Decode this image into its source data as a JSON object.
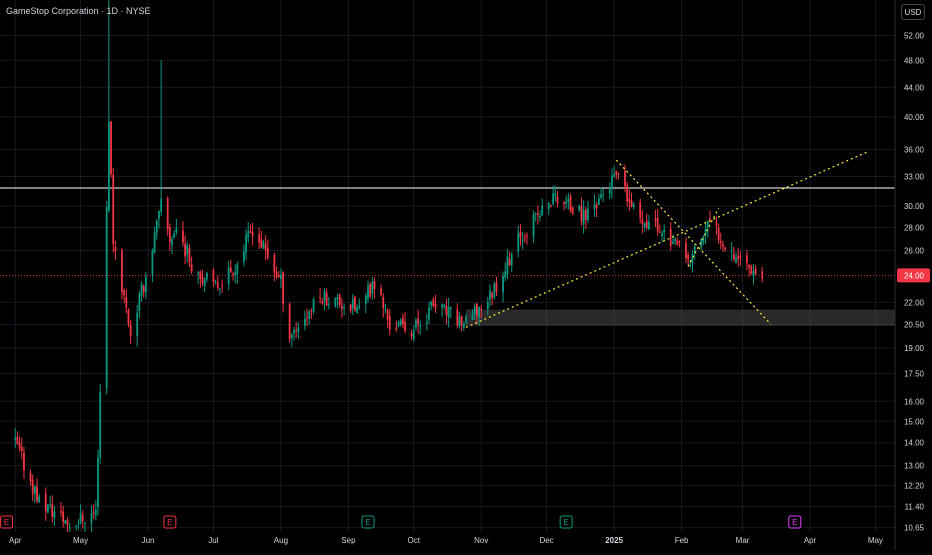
{
  "header": {
    "symbol_title": "GameStop Corporation · 1D · NYSE",
    "currency_button": "USD"
  },
  "price_scale": {
    "ticks": [
      "52.00",
      "48.00",
      "44.00",
      "40.00",
      "36.00",
      "33.00",
      "30.00",
      "28.00",
      "26.00",
      "22.00",
      "20.50",
      "19.00",
      "17.50",
      "16.00",
      "15.00",
      "14.00",
      "13.00",
      "12.20",
      "11.40",
      "10.65"
    ],
    "current_price_label": "24.00"
  },
  "time_axis": {
    "labels": [
      "Apr",
      "May",
      "Jun",
      "Jul",
      "Aug",
      "Sep",
      "Oct",
      "Nov",
      "Dec",
      "2025",
      "Feb",
      "Mar",
      "Apr",
      "May"
    ]
  },
  "events": [
    {
      "letter": "E",
      "type": "earnings",
      "color": "#f23645"
    },
    {
      "letter": "E",
      "type": "earnings",
      "color": "#f23645"
    },
    {
      "letter": "E",
      "type": "earnings",
      "color": "#089981"
    },
    {
      "letter": "E",
      "type": "earnings",
      "color": "#089981"
    },
    {
      "letter": "E",
      "type": "earnings-upcoming",
      "color": "#e040fb"
    }
  ],
  "colors": {
    "background": "#000000",
    "up": "#089981",
    "down": "#f23645",
    "trendline": "#ffeb3b",
    "horizontal_line": "#ffffff",
    "support_zone": "#4a4a4a",
    "current_price": "#f23645"
  },
  "chart_data": {
    "type": "candlestick",
    "symbol": "GME",
    "interval": "1D",
    "exchange": "NYSE",
    "currency": "USD",
    "scale": "log",
    "y_range": [
      10.5,
      55
    ],
    "current_price": 24.0,
    "horizontal_level": 31.8,
    "support_zone": [
      20.4,
      21.5
    ],
    "trendlines": [
      {
        "from": {
          "date": "2024-10-25",
          "price": 20.3
        },
        "to": {
          "date": "2025-04-28",
          "price": 35.8
        }
      },
      {
        "from": {
          "date": "2025-01-02",
          "price": 34.8
        },
        "to": {
          "date": "2025-03-14",
          "price": 20.5
        }
      },
      {
        "from": {
          "date": "2025-02-04",
          "price": 24.7
        },
        "to": {
          "date": "2025-02-18",
          "price": 29.8
        }
      }
    ],
    "anchors": [
      [
        "2024-04-01",
        14.0
      ],
      [
        "2024-04-12",
        11.6
      ],
      [
        "2024-04-26",
        10.8
      ],
      [
        "2024-05-08",
        11.2
      ],
      [
        "2024-05-13",
        30.0
      ],
      [
        "2024-05-14",
        40.0
      ],
      [
        "2024-05-16",
        27.0
      ],
      [
        "2024-05-24",
        20.0
      ],
      [
        "2024-05-31",
        24.0
      ],
      [
        "2024-06-07",
        30.0
      ],
      [
        "2024-06-11",
        27.0
      ],
      [
        "2024-06-14",
        28.0
      ],
      [
        "2024-06-21",
        25.0
      ],
      [
        "2024-07-01",
        23.0
      ],
      [
        "2024-07-12",
        25.0
      ],
      [
        "2024-07-19",
        28.0
      ],
      [
        "2024-08-01",
        23.5
      ],
      [
        "2024-08-05",
        19.8
      ],
      [
        "2024-08-20",
        22.5
      ],
      [
        "2024-09-06",
        21.5
      ],
      [
        "2024-09-13",
        23.5
      ],
      [
        "2024-09-20",
        20.5
      ],
      [
        "2024-10-01",
        20.2
      ],
      [
        "2024-10-10",
        21.8
      ],
      [
        "2024-10-25",
        20.5
      ],
      [
        "2024-11-05",
        22.5
      ],
      [
        "2024-11-20",
        27.5
      ],
      [
        "2024-12-05",
        31.0
      ],
      [
        "2024-12-18",
        29.0
      ],
      [
        "2025-01-02",
        33.0
      ],
      [
        "2025-01-10",
        29.5
      ],
      [
        "2025-01-25",
        27.5
      ],
      [
        "2025-02-04",
        25.0
      ],
      [
        "2025-02-14",
        28.5
      ],
      [
        "2025-02-24",
        26.0
      ],
      [
        "2025-03-10",
        24.0
      ]
    ],
    "highlight_highs": [
      {
        "date": "2024-05-14",
        "price": 64.0
      },
      {
        "date": "2024-06-07",
        "price": 48.0
      }
    ]
  }
}
